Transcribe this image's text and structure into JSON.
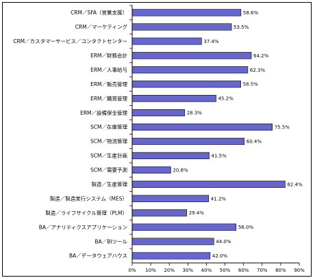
{
  "chart_data": {
    "type": "bar",
    "orientation": "horizontal",
    "title": "",
    "xlabel": "",
    "ylabel": "",
    "xlim": [
      0,
      90
    ],
    "value_unit": "%",
    "x_tick_labels": [
      "0%",
      "10%",
      "20%",
      "30%",
      "40%",
      "50%",
      "60%",
      "70%",
      "80%",
      "90%"
    ],
    "bar_color": "#6666cc",
    "bar_edge_color": "#000000",
    "grid": false,
    "legend": "none",
    "categories": [
      "CRM／SFA（営業支援）",
      "CRM／マーケティング",
      "CRM／カスタマーサービス／コンタクトセンター",
      "ERM／財務会計",
      "ERM／人事給与",
      "ERM／販売管理",
      "ERM／購買管理",
      "ERM／設備保全管理",
      "SCM／在庫管理",
      "SCM／物流管理",
      "SCM／生産計画",
      "SCM／需要予測",
      "製造／生産管理",
      "製造／製造実行システム（MES）",
      "製造／ライフサイクル管理（PLM）",
      "BA／アナリティクスアプリケーション",
      "BA／BIツール",
      "BA／データウェアハウス"
    ],
    "values": [
      58.6,
      53.5,
      37.4,
      64.2,
      62.3,
      58.5,
      45.2,
      28.3,
      75.5,
      60.4,
      41.5,
      20.8,
      82.4,
      41.2,
      29.4,
      56.0,
      44.0,
      42.0
    ],
    "value_labels": [
      "58.6%",
      "53.5%",
      "37.4%",
      "64.2%",
      "62.3%",
      "58.5%",
      "45.2%",
      "28.3%",
      "75.5%",
      "60.4%",
      "41.5%",
      "20.8%",
      "82.4%",
      "41.2%",
      "29.4%",
      "56.0%",
      "44.0%",
      "42.0%"
    ]
  }
}
